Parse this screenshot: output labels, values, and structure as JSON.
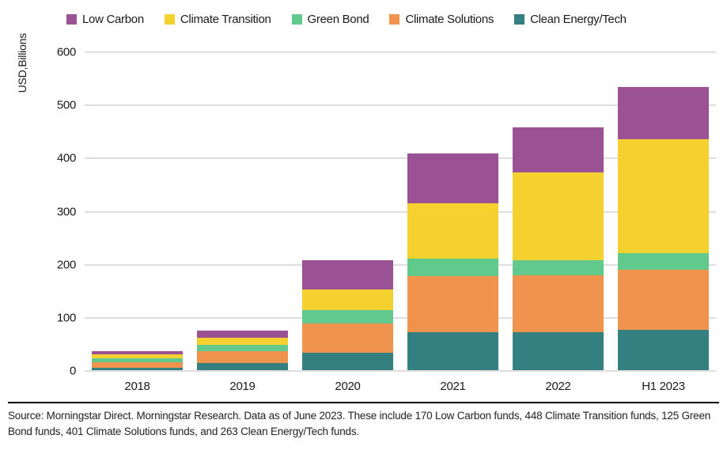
{
  "chart_data": {
    "type": "bar",
    "stacked": true,
    "ylabel": "USD,Billions",
    "xlabel": "",
    "ylim": [
      0,
      600
    ],
    "yticks": [
      0,
      100,
      200,
      300,
      400,
      500,
      600
    ],
    "grid": true,
    "legend_position": "top",
    "legend_order": [
      "Low Carbon",
      "Climate Transition",
      "Green Bond",
      "Climate Solutions",
      "Clean Energy/Tech"
    ],
    "categories": [
      "2018",
      "2019",
      "2020",
      "2021",
      "2022",
      "H1 2023"
    ],
    "series": [
      {
        "name": "Clean Energy/Tech",
        "color": "#347F80",
        "values": [
          6,
          15,
          35,
          73,
          73,
          78
        ]
      },
      {
        "name": "Climate Solutions",
        "color": "#F0934E",
        "values": [
          11,
          22,
          54,
          105,
          107,
          113
        ]
      },
      {
        "name": "Green Bond",
        "color": "#62C98C",
        "values": [
          7,
          12,
          25,
          34,
          28,
          31
        ]
      },
      {
        "name": "Climate Transition",
        "color": "#F5D130",
        "values": [
          8,
          13,
          40,
          104,
          166,
          214
        ]
      },
      {
        "name": "Low Carbon",
        "color": "#9A5295",
        "values": [
          6,
          14,
          55,
          93,
          84,
          99
        ]
      }
    ],
    "colors": {
      "grid": "#DEDEDE",
      "axis_text": "#1A1A1A",
      "footer_rule": "#000000"
    }
  },
  "footer": {
    "source_note": "Source: Morningstar Direct. Morningstar Research. Data as of June 2023. These include 170 Low Carbon funds, 448 Climate Transition funds, 125 Green Bond funds, 401 Climate Solutions funds, and 263 Clean Energy/Tech funds."
  }
}
